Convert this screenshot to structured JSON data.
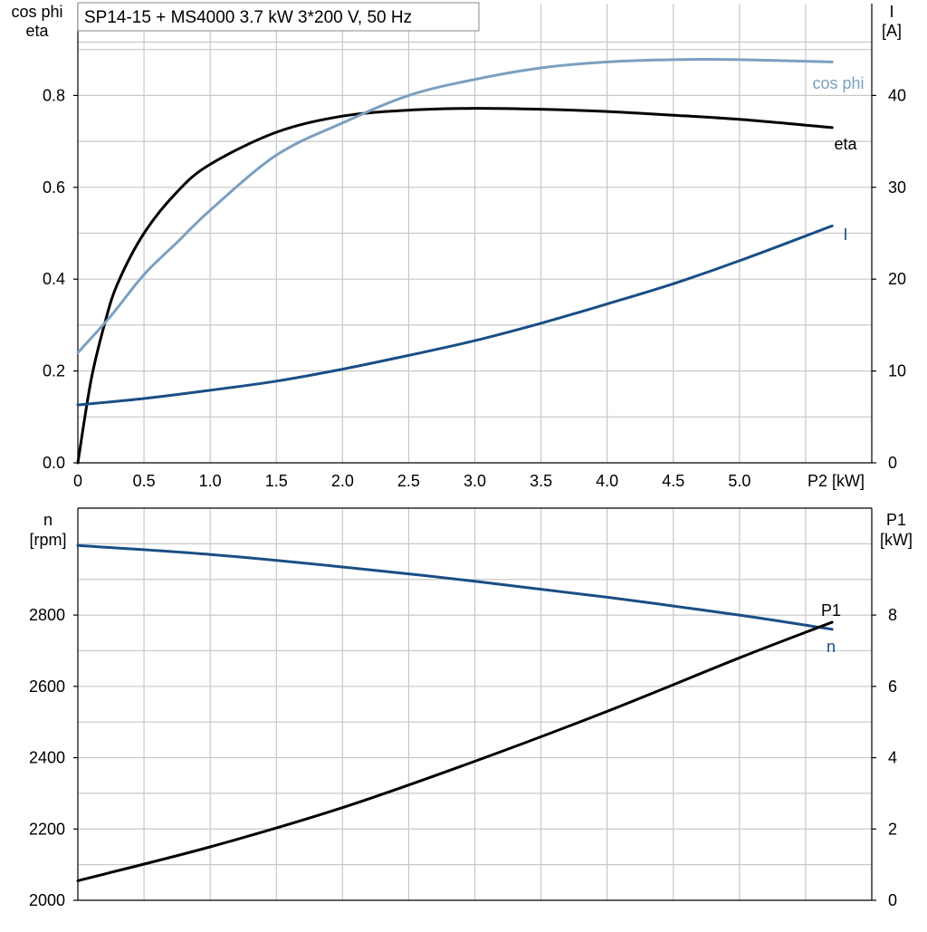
{
  "title": "SP14-15 + MS4000   3.7 kW   3*200 V, 50 Hz",
  "colors": {
    "eta": "#000000",
    "cos_phi": "#7b9fc0",
    "I": "#1a4e85",
    "n": "#1a4e85",
    "P1": "#000000",
    "grid": "#c8c8c8"
  },
  "chart_data": [
    {
      "type": "line",
      "grid": true,
      "x_axis": {
        "label": "P2 [kW]",
        "range": [
          0,
          6.0
        ],
        "ticks": [
          0,
          0.5,
          1.0,
          1.5,
          2.0,
          2.5,
          3.0,
          3.5,
          4.0,
          4.5,
          5.0
        ],
        "tick_labels": [
          "0",
          "0.5",
          "1.0",
          "1.5",
          "2.0",
          "2.5",
          "3.0",
          "3.5",
          "4.0",
          "4.5",
          "5.0"
        ]
      },
      "y_left": {
        "label_lines": [
          "cos phi",
          "eta"
        ],
        "range": [
          0,
          1.0
        ],
        "ticks": [
          0,
          0.2,
          0.4,
          0.6,
          0.8
        ],
        "tick_labels": [
          "0.0",
          "0.2",
          "0.4",
          "0.6",
          "0.8"
        ]
      },
      "y_right": {
        "label_lines": [
          "I",
          "[A]"
        ],
        "range": [
          0,
          50
        ],
        "ticks": [
          0,
          10,
          20,
          30,
          40
        ],
        "tick_labels": [
          "0",
          "10",
          "20",
          "30",
          "40"
        ]
      },
      "series": [
        {
          "name": "eta",
          "axis": "left",
          "x": [
            0,
            0.1,
            0.2,
            0.3,
            0.5,
            0.75,
            1.0,
            1.5,
            2.0,
            2.5,
            3.0,
            3.5,
            4.0,
            4.5,
            5.0,
            5.7
          ],
          "y": [
            0,
            0.18,
            0.3,
            0.39,
            0.5,
            0.59,
            0.65,
            0.72,
            0.755,
            0.768,
            0.772,
            0.77,
            0.765,
            0.757,
            0.748,
            0.73
          ]
        },
        {
          "name": "cos phi",
          "axis": "left",
          "x": [
            0,
            0.25,
            0.5,
            0.75,
            1.0,
            1.5,
            2.0,
            2.5,
            3.0,
            3.5,
            4.0,
            4.5,
            5.0,
            5.7
          ],
          "y": [
            0.24,
            0.32,
            0.41,
            0.48,
            0.55,
            0.67,
            0.74,
            0.8,
            0.835,
            0.86,
            0.873,
            0.878,
            0.878,
            0.873
          ]
        },
        {
          "name": "I",
          "axis": "right",
          "x": [
            0,
            0.5,
            1.0,
            1.5,
            2.0,
            2.5,
            3.0,
            3.5,
            4.0,
            4.5,
            5.0,
            5.7
          ],
          "y": [
            6.3,
            7.0,
            7.9,
            8.9,
            10.2,
            11.7,
            13.3,
            15.2,
            17.3,
            19.5,
            22.0,
            25.8
          ]
        }
      ]
    },
    {
      "type": "line",
      "grid": true,
      "x_axis": {
        "range": [
          0,
          6.0
        ],
        "ticks": [
          0,
          0.5,
          1.0,
          1.5,
          2.0,
          2.5,
          3.0,
          3.5,
          4.0,
          4.5,
          5.0
        ]
      },
      "y_left": {
        "label_lines": [
          "n",
          "[rpm]"
        ],
        "range": [
          2000,
          3100
        ],
        "ticks": [
          2000,
          2200,
          2400,
          2600,
          2800
        ],
        "tick_labels": [
          "2000",
          "2200",
          "2400",
          "2600",
          "2800"
        ]
      },
      "y_right": {
        "label_lines": [
          "P1",
          "[kW]"
        ],
        "range": [
          0,
          11
        ],
        "ticks": [
          0,
          2,
          4,
          6,
          8
        ],
        "tick_labels": [
          "0",
          "2",
          "4",
          "6",
          "8"
        ]
      },
      "series": [
        {
          "name": "n",
          "axis": "left",
          "x": [
            0,
            1.0,
            2.0,
            3.0,
            4.0,
            5.0,
            5.7
          ],
          "y": [
            2995,
            2970,
            2935,
            2895,
            2850,
            2800,
            2760
          ]
        },
        {
          "name": "P1",
          "axis": "right",
          "x": [
            0,
            1.0,
            2.0,
            3.0,
            4.0,
            5.0,
            5.7
          ],
          "y": [
            0.55,
            1.5,
            2.6,
            3.9,
            5.3,
            6.8,
            7.8
          ]
        }
      ]
    }
  ]
}
